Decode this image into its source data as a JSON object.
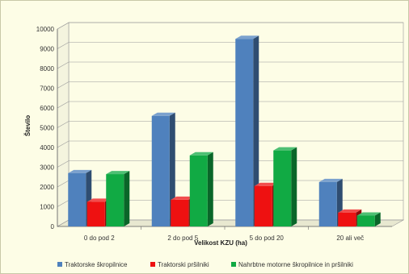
{
  "chart_data": {
    "type": "bar",
    "title": "",
    "xlabel": "Velikost KZU (ha)",
    "ylabel": "Število",
    "categories": [
      "0 do pod 2",
      "2 do pod 5",
      "5 do pod 20",
      "20 ali več"
    ],
    "series": [
      {
        "name": "Traktorske škropilnice",
        "values": [
          2700,
          5600,
          9500,
          2250
        ]
      },
      {
        "name": "Traktorski pršilniki",
        "values": [
          1250,
          1350,
          2050,
          700
        ]
      },
      {
        "name": "Nahrbtne motorne škropilnice in pršilniki",
        "values": [
          2650,
          3600,
          3850,
          550
        ]
      }
    ],
    "ylim": [
      0,
      10000
    ],
    "yticks": [
      "0",
      "1000",
      "2000",
      "3000",
      "4000",
      "5000",
      "6000",
      "7000",
      "8000",
      "9000",
      "10000"
    ],
    "grid": true,
    "legend_position": "bottom",
    "colors": [
      "#4f81bd",
      "#ee1111",
      "#11aa44"
    ]
  }
}
